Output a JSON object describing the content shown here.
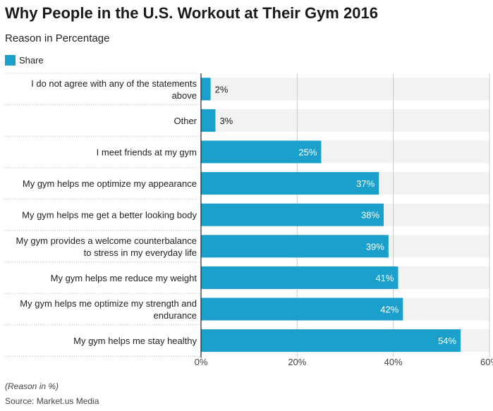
{
  "title": "Why People in the U.S. Workout at Their Gym 2016",
  "subtitle": "Reason in Percentage",
  "legend_label": "Share",
  "note": "(Reason in %)",
  "source": "Source: Market.us Media",
  "colors": {
    "bar": "#1aa0cb",
    "track": "#f2f2f2",
    "grid": "#cccccc",
    "axis": "#222222"
  },
  "chart_data": {
    "type": "bar",
    "orientation": "horizontal",
    "categories": [
      [
        "I do not agree with any of the statements",
        "above"
      ],
      [
        "Other"
      ],
      [
        "I meet friends at my gym"
      ],
      [
        "My gym helps me optimize my appearance"
      ],
      [
        "My gym helps me get a better looking body"
      ],
      [
        "My gym provides a welcome counterbalance",
        "to stress in my everyday life"
      ],
      [
        "My gym helps me reduce my weight"
      ],
      [
        "My gym helps me optimize my strength and",
        "endurance"
      ],
      [
        "My gym helps me stay healthy"
      ]
    ],
    "series": [
      {
        "name": "Share",
        "values": [
          2,
          3,
          25,
          37,
          38,
          39,
          41,
          42,
          54
        ]
      }
    ],
    "data_labels": [
      "2%",
      "3%",
      "25%",
      "37%",
      "38%",
      "39%",
      "41%",
      "42%",
      "54%"
    ],
    "xlim": [
      0,
      60
    ],
    "xticks": [
      0,
      20,
      40,
      60
    ],
    "xtick_labels": [
      "0%",
      "20%",
      "40%",
      "60%"
    ],
    "grid": true,
    "legend_position": "top-left"
  }
}
